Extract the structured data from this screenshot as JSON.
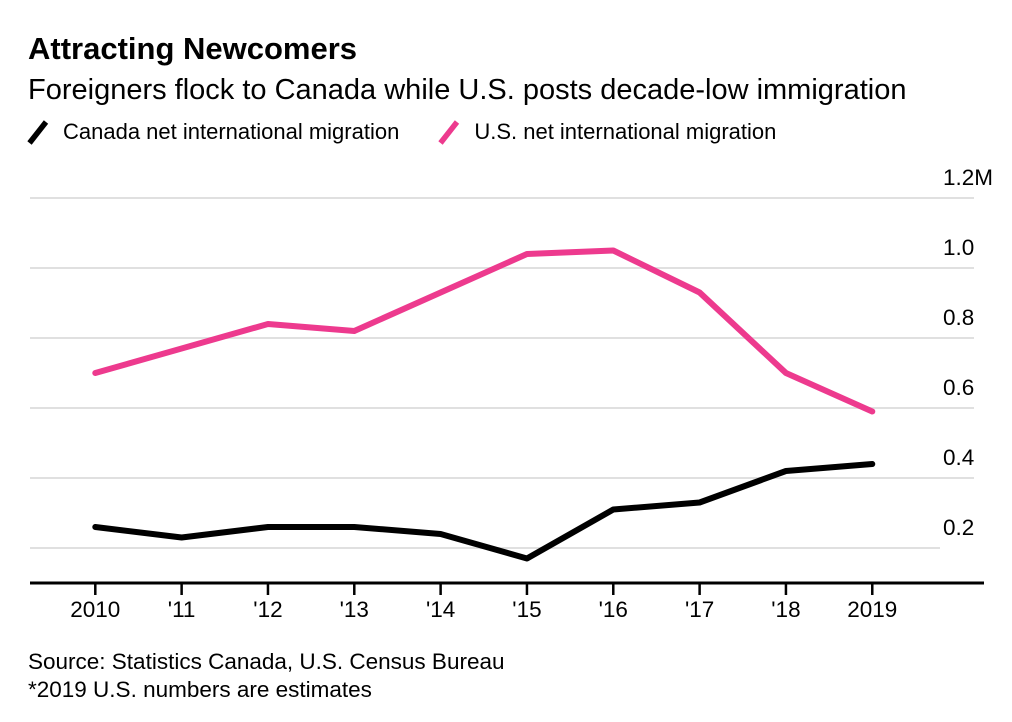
{
  "header": {
    "title": "Attracting Newcomers",
    "subtitle": "Foreigners flock to Canada while U.S. posts decade-low immigration"
  },
  "legend": [
    {
      "label": "Canada net international migration",
      "color": "#000000"
    },
    {
      "label": "U.S. net international migration",
      "color": "#ed3a8e"
    }
  ],
  "chart_data": {
    "type": "line",
    "title": "Attracting Newcomers",
    "subtitle": "Foreigners flock to Canada while U.S. posts decade-low immigration",
    "unit": "millions of people",
    "categories": [
      "2010",
      "'11",
      "'12",
      "'13",
      "'14",
      "'15",
      "'16",
      "'17",
      "'18",
      "2019"
    ],
    "series": [
      {
        "name": "Canada net international migration",
        "color": "#000000",
        "values": [
          0.26,
          0.23,
          0.26,
          0.26,
          0.24,
          0.17,
          0.31,
          0.33,
          0.42,
          0.44
        ]
      },
      {
        "name": "U.S. net international migration",
        "color": "#ed3a8e",
        "values": [
          0.7,
          0.77,
          0.84,
          0.82,
          0.93,
          1.04,
          1.05,
          0.93,
          0.7,
          0.59
        ]
      }
    ],
    "y_ticks": [
      {
        "label": "1.2M",
        "value": 1.2
      },
      {
        "label": "1.0",
        "value": 1.0
      },
      {
        "label": "0.8",
        "value": 0.8
      },
      {
        "label": "0.6",
        "value": 0.6
      },
      {
        "label": "0.4",
        "value": 0.4
      },
      {
        "label": "0.2",
        "value": 0.2
      }
    ],
    "ylim": [
      0.1,
      1.25
    ],
    "grid": true,
    "grid_color": "#e0e0e0",
    "axis_color": "#000000",
    "legend_position": "top"
  },
  "source": {
    "line1": "Source: Statistics Canada, U.S. Census Bureau",
    "line2": "*2019 U.S. numbers are estimates"
  }
}
